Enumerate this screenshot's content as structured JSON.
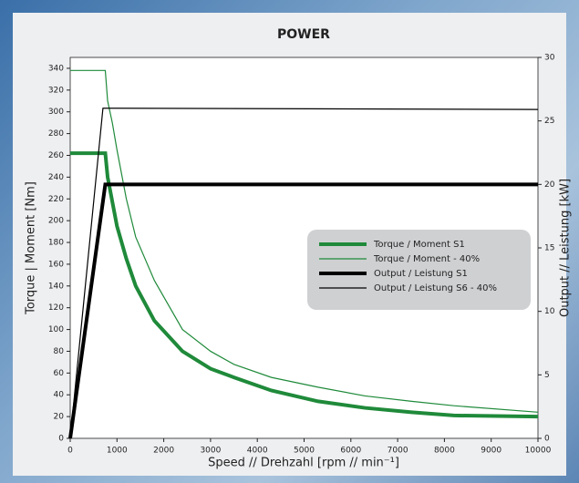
{
  "chart_data": {
    "type": "line",
    "title": "POWER",
    "x_label": "Speed // Drehzahl [rpm // min⁻¹]",
    "y_label": "Torque | Moment [Nm]",
    "y2_label": "Output // Leistung [kW]",
    "xlim": [
      0,
      10000
    ],
    "xticks": [
      0,
      1000,
      2000,
      3000,
      4000,
      5000,
      6000,
      7000,
      8000,
      9000,
      10000
    ],
    "ylim": [
      0,
      350
    ],
    "yticks": [
      0,
      20,
      40,
      60,
      80,
      100,
      120,
      140,
      160,
      180,
      200,
      220,
      240,
      260,
      280,
      300,
      320,
      340
    ],
    "y2lim": [
      0,
      30
    ],
    "y2ticks": [
      0,
      5,
      10,
      15,
      20,
      25,
      30
    ],
    "series": [
      {
        "name": "Torque / Moment S1",
        "color": "#1f8a3a",
        "width": 4,
        "x": [
          0,
          750,
          800,
          1000,
          1200,
          1400,
          1800,
          2400,
          3000,
          3500,
          4300,
          5300,
          6300,
          7300,
          8200,
          10000
        ],
        "values": [
          262,
          262,
          240,
          195,
          165,
          140,
          108,
          80,
          64,
          56,
          44,
          34,
          28,
          24,
          21,
          20
        ]
      },
      {
        "name": "Torque / Moment - 40%",
        "color": "#1f8a3a",
        "width": 1.2,
        "x": [
          0,
          750,
          800,
          900,
          1000,
          1200,
          1400,
          1800,
          2400,
          3000,
          3500,
          4300,
          5300,
          6300,
          7300,
          8200,
          10000
        ],
        "values": [
          338,
          338,
          310,
          290,
          265,
          220,
          185,
          145,
          100,
          80,
          68,
          56,
          47,
          39,
          34,
          30,
          24
        ]
      },
      {
        "name": "Output / Leistung S1",
        "color": "#000000",
        "width": 4,
        "axis": "y2",
        "x": [
          0,
          750,
          10000
        ],
        "values": [
          0,
          20,
          20
        ]
      },
      {
        "name": "Output / Leistung S6 - 40%",
        "color": "#000000",
        "width": 1.2,
        "axis": "y2",
        "x": [
          0,
          700,
          10000
        ],
        "values": [
          0,
          26,
          25.9
        ]
      }
    ]
  }
}
